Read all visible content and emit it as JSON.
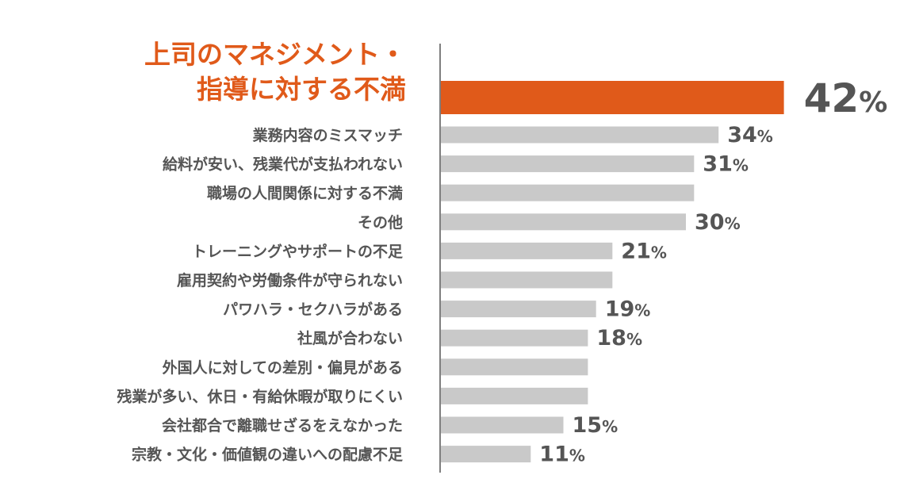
{
  "colors": {
    "highlight": "#e05a1a",
    "bar": "#c9c9c9",
    "label": "#555555",
    "axis": "#555555"
  },
  "chart_data": {
    "type": "bar",
    "orientation": "horizontal",
    "grid": false,
    "legend": "none",
    "xlim": [
      0,
      42
    ],
    "value_suffix": "%",
    "highlight_index": 0,
    "categories": [
      "上司のマネジメント・指導に対する不満",
      "業務内容のミスマッチ",
      "給料が安い、残業代が支払われない",
      "職場の人間関係に対する不満",
      "その他",
      "トレーニングやサポートの不足",
      "雇用契約や労働条件が守られない",
      "パワハラ・セクハラがある",
      "社風が合わない",
      "外国人に対しての差別・偏見がある",
      "残業が多い、休日・有給休暇が取りにくい",
      "会社都合で離職せざるをえなかった",
      "宗教・文化・価値観の違いへの配慮不足"
    ],
    "highlight_label_lines": [
      "上司のマネジメント・",
      "指導に対する不満"
    ],
    "values": [
      42,
      34,
      31,
      31,
      30,
      21,
      21,
      19,
      18,
      18,
      18,
      15,
      11
    ],
    "value_labels": [
      "42",
      "34",
      "31",
      "",
      "30",
      "21",
      "",
      "19",
      "18",
      "",
      "",
      "15",
      "11"
    ]
  }
}
